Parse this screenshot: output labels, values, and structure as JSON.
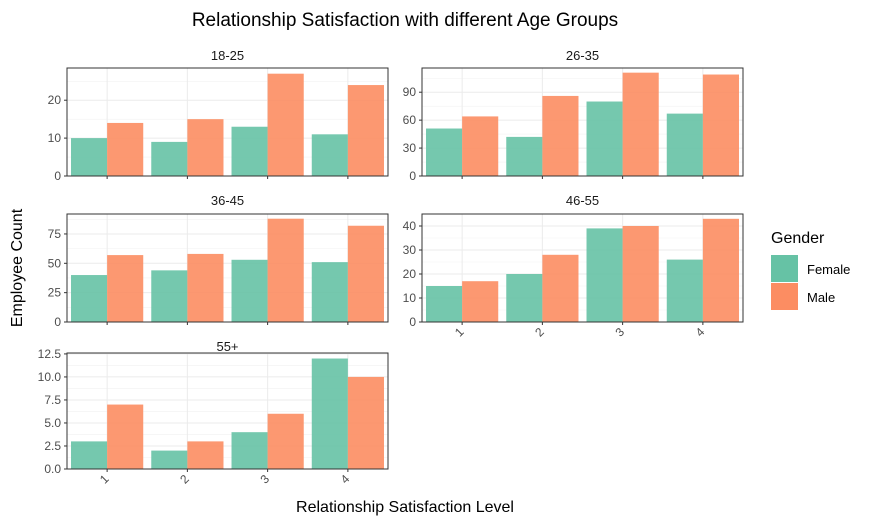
{
  "chart_data": {
    "type": "bar",
    "title": "Relationship Satisfaction with different Age Groups",
    "xlabel": "Relationship Satisfaction Level",
    "ylabel": "Employee Count",
    "categories": [
      "1",
      "2",
      "3",
      "4"
    ],
    "legend": {
      "title": "Gender",
      "position": "right",
      "entries": [
        {
          "name": "Female",
          "color": "#66c2a5"
        },
        {
          "name": "Male",
          "color": "#fc8d62"
        }
      ]
    },
    "colors": {
      "Female": "#66c2a5",
      "Male": "#fc8d62"
    },
    "grid": true,
    "panels": [
      {
        "label": "18-25",
        "ylim": [
          0,
          28.5
        ],
        "yticks": [
          0,
          10,
          20
        ],
        "series": [
          {
            "name": "Female",
            "values": [
              10,
              9,
              13,
              11
            ]
          },
          {
            "name": "Male",
            "values": [
              14,
              15,
              27,
              24
            ]
          }
        ]
      },
      {
        "label": "26-35",
        "ylim": [
          0,
          116
        ],
        "yticks": [
          0,
          30,
          60,
          90
        ],
        "series": [
          {
            "name": "Female",
            "values": [
              51,
              42,
              80,
              67
            ]
          },
          {
            "name": "Male",
            "values": [
              64,
              86,
              111,
              109
            ]
          }
        ]
      },
      {
        "label": "36-45",
        "ylim": [
          0,
          92
        ],
        "yticks": [
          0,
          25,
          50,
          75
        ],
        "series": [
          {
            "name": "Female",
            "values": [
              40,
              44,
              53,
              51
            ]
          },
          {
            "name": "Male",
            "values": [
              57,
              58,
              88,
              82
            ]
          }
        ]
      },
      {
        "label": "46-55",
        "ylim": [
          0,
          45
        ],
        "yticks": [
          0,
          10,
          20,
          30,
          40
        ],
        "series": [
          {
            "name": "Female",
            "values": [
              15,
              20,
              39,
              26
            ]
          },
          {
            "name": "Male",
            "values": [
              17,
              28,
              40,
              43
            ]
          }
        ]
      },
      {
        "label": "55+",
        "ylim": [
          0,
          12.6
        ],
        "yticks": [
          0.0,
          2.5,
          5.0,
          7.5,
          10.0,
          12.5
        ],
        "ytick_labels": [
          "0.0",
          "2.5",
          "5.0",
          "7.5",
          "10.0",
          "12.5"
        ],
        "series": [
          {
            "name": "Female",
            "values": [
              3,
              2,
              4,
              12
            ]
          },
          {
            "name": "Male",
            "values": [
              7,
              3,
              6,
              10
            ]
          }
        ]
      }
    ]
  }
}
